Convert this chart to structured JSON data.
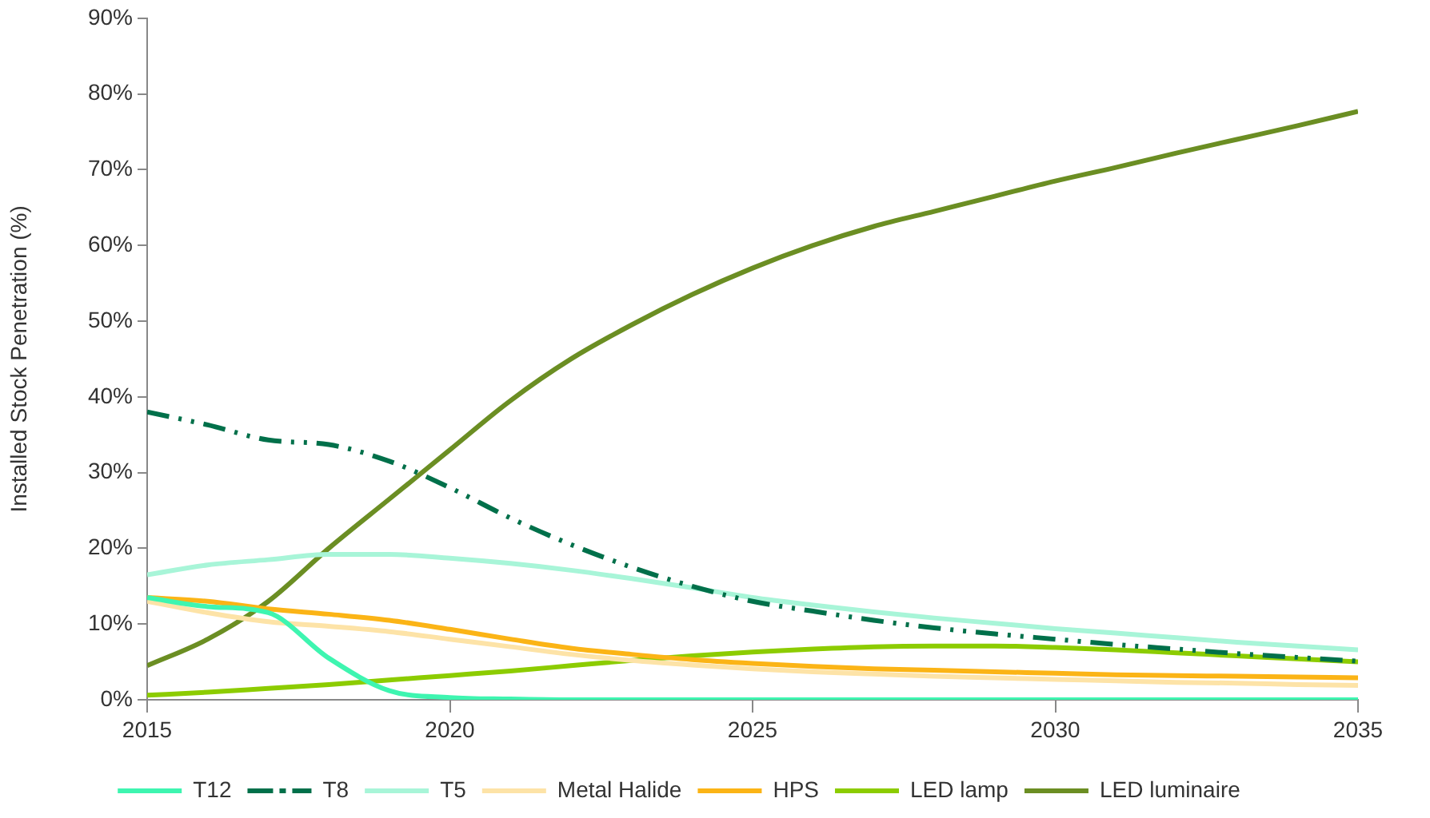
{
  "chart_data": {
    "type": "line",
    "ylabel": "Installed Stock Penetration (%)",
    "x": [
      2015,
      2016,
      2017,
      2018,
      2019,
      2020,
      2021,
      2022,
      2023,
      2024,
      2025,
      2026,
      2027,
      2028,
      2029,
      2030,
      2031,
      2032,
      2033,
      2034,
      2035
    ],
    "xlim": [
      2015,
      2035
    ],
    "xticks": [
      2015,
      2020,
      2025,
      2030,
      2035
    ],
    "ylim": [
      0,
      90
    ],
    "yticks": [
      {
        "value": 0,
        "label": "0%"
      },
      {
        "value": 10,
        "label": "10%"
      },
      {
        "value": 20,
        "label": "20%"
      },
      {
        "value": 30,
        "label": "30%"
      },
      {
        "value": 40,
        "label": "40%"
      },
      {
        "value": 50,
        "label": "50%"
      },
      {
        "value": 60,
        "label": "60%"
      },
      {
        "value": 70,
        "label": "70%"
      },
      {
        "value": 80,
        "label": "80%"
      },
      {
        "value": 90,
        "label": "90%"
      }
    ],
    "grid": false,
    "legend": "bottom",
    "marker": "none",
    "series": [
      {
        "name": "T12",
        "color": "#3ef5b0",
        "values": [
          13.5,
          12.3,
          11.5,
          5.5,
          1.2,
          0.3,
          0.1,
          0,
          0,
          0,
          0,
          0,
          0,
          0,
          0,
          0,
          0,
          0,
          0,
          0,
          0
        ]
      },
      {
        "name": "T8",
        "color": "#00704a",
        "line_style": "dashed",
        "values": [
          38,
          36.3,
          34.3,
          33.7,
          31.5,
          28,
          24,
          20.5,
          17.5,
          15,
          13,
          11.7,
          10.5,
          9.5,
          8.7,
          8,
          7.3,
          6.7,
          6.1,
          5.6,
          5.1
        ]
      },
      {
        "name": "T5",
        "color": "#a8f5d8",
        "values": [
          16.5,
          17.8,
          18.5,
          19.2,
          19.2,
          18.7,
          18,
          17.1,
          16,
          14.8,
          13.5,
          12.5,
          11.6,
          10.8,
          10.1,
          9.4,
          8.8,
          8.2,
          7.6,
          7.1,
          6.6
        ]
      },
      {
        "name": "Metal Halide",
        "color": "#fde3a7",
        "values": [
          13,
          11.5,
          10.3,
          9.7,
          9,
          8,
          7,
          6,
          5.2,
          4.6,
          4.1,
          3.7,
          3.4,
          3.1,
          2.9,
          2.7,
          2.5,
          2.3,
          2.2,
          2,
          1.9
        ]
      },
      {
        "name": "HPS",
        "color": "#fbb416",
        "values": [
          13.5,
          13,
          12,
          11.3,
          10.5,
          9.3,
          8,
          6.8,
          6,
          5.3,
          4.8,
          4.4,
          4.1,
          3.9,
          3.7,
          3.5,
          3.3,
          3.2,
          3.1,
          3,
          2.9
        ]
      },
      {
        "name": "LED lamp",
        "color": "#8ccc00",
        "values": [
          0.6,
          1,
          1.5,
          2,
          2.6,
          3.2,
          3.8,
          4.5,
          5.2,
          5.8,
          6.3,
          6.7,
          7,
          7.1,
          7.1,
          6.9,
          6.6,
          6.2,
          5.8,
          5.4,
          5
        ]
      },
      {
        "name": "LED luminaire",
        "color": "#6b8e23",
        "values": [
          4.5,
          8,
          13,
          20,
          26.5,
          33,
          39.5,
          45,
          49.5,
          53.5,
          57,
          60,
          62.5,
          64.5,
          66.5,
          68.5,
          70.3,
          72.2,
          74,
          75.8,
          77.7
        ]
      }
    ]
  }
}
